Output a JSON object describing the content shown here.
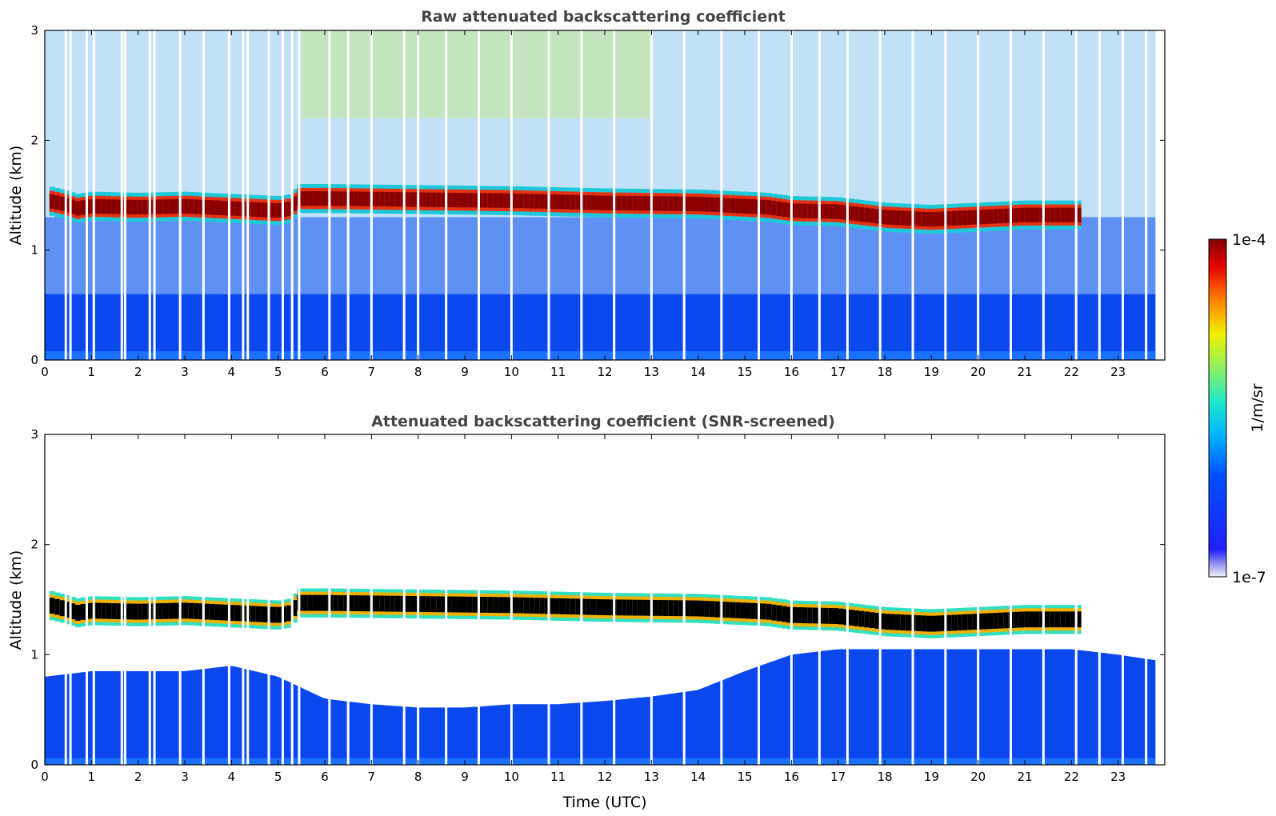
{
  "chart_data": [
    {
      "type": "heatmap",
      "title": "Raw attenuated backscattering coefficient",
      "xlabel": "",
      "ylabel": "Altitude (km)",
      "xlim": [
        0,
        24
      ],
      "ylim": [
        0,
        3
      ],
      "x_ticks": [
        "0",
        "1",
        "2",
        "3",
        "4",
        "5",
        "6",
        "7",
        "8",
        "9",
        "10",
        "11",
        "12",
        "13",
        "14",
        "15",
        "16",
        "17",
        "18",
        "19",
        "20",
        "21",
        "22",
        "23"
      ],
      "y_ticks": [
        "0",
        "1",
        "2",
        "3"
      ],
      "features": {
        "cloud_layer": {
          "description": "high-backscatter layer",
          "points": [
            [
              0.1,
              1.45
            ],
            [
              0.4,
              1.42
            ],
            [
              0.7,
              1.38
            ],
            [
              1.0,
              1.4
            ],
            [
              2.0,
              1.39
            ],
            [
              3.0,
              1.4
            ],
            [
              4.0,
              1.38
            ],
            [
              5.0,
              1.36
            ],
            [
              5.3,
              1.38
            ],
            [
              5.4,
              1.47
            ],
            [
              6,
              1.47
            ],
            [
              8,
              1.46
            ],
            [
              10,
              1.45
            ],
            [
              12,
              1.43
            ],
            [
              14,
              1.42
            ],
            [
              15.5,
              1.39
            ],
            [
              16,
              1.36
            ],
            [
              17,
              1.35
            ],
            [
              18,
              1.3
            ],
            [
              19,
              1.28
            ],
            [
              20,
              1.3
            ],
            [
              21,
              1.32
            ],
            [
              22.2,
              1.32
            ]
          ],
          "end_hour": 22.2,
          "thickness_km": 0.12
        },
        "missing_profiles_hours": [
          0.45,
          0.55,
          0.9,
          1.05,
          1.65,
          1.72,
          2.25,
          2.35,
          2.9,
          3.4,
          3.95,
          4.25,
          4.35,
          4.8,
          5.1,
          5.3,
          5.45,
          6.1,
          6.5,
          7.0,
          7.7,
          8.0,
          8.6,
          9.3,
          10.0,
          10.8,
          11.5,
          12.2,
          13.0,
          13.7,
          14.5,
          15.3,
          16.0,
          16.6,
          17.2,
          17.9,
          18.6,
          19.3,
          20.0,
          20.7,
          21.4,
          22.1,
          22.6,
          23.1,
          23.6
        ]
      }
    },
    {
      "type": "heatmap",
      "title": "Attenuated backscattering coefficient (SNR-screened)",
      "xlabel": "Time (UTC)",
      "ylabel": "Altitude (km)",
      "xlim": [
        0,
        24
      ],
      "ylim": [
        0,
        3
      ],
      "x_ticks": [
        "0",
        "1",
        "2",
        "3",
        "4",
        "5",
        "6",
        "7",
        "8",
        "9",
        "10",
        "11",
        "12",
        "13",
        "14",
        "15",
        "16",
        "17",
        "18",
        "19",
        "20",
        "21",
        "22",
        "23"
      ],
      "y_ticks": [
        "0",
        "1",
        "2",
        "3"
      ],
      "features": {
        "boundary_layer_top": {
          "description": "top of retained low-level signal (km)",
          "points": [
            [
              0,
              0.8
            ],
            [
              1,
              0.85
            ],
            [
              2,
              0.85
            ],
            [
              3,
              0.85
            ],
            [
              4,
              0.9
            ],
            [
              5,
              0.8
            ],
            [
              6,
              0.6
            ],
            [
              7,
              0.55
            ],
            [
              8,
              0.52
            ],
            [
              9,
              0.52
            ],
            [
              10,
              0.55
            ],
            [
              11,
              0.55
            ],
            [
              12,
              0.58
            ],
            [
              13,
              0.62
            ],
            [
              14,
              0.68
            ],
            [
              15,
              0.85
            ],
            [
              16,
              1.0
            ],
            [
              17,
              1.05
            ],
            [
              18,
              1.05
            ],
            [
              19,
              1.05
            ],
            [
              20,
              1.05
            ],
            [
              21,
              1.05
            ],
            [
              22,
              1.05
            ],
            [
              23,
              1.0
            ],
            [
              23.8,
              0.95
            ]
          ]
        }
      }
    }
  ],
  "colorbar": {
    "label": "1/m/sr",
    "max_label": "1e-4",
    "min_label": "1e-7",
    "colormap": "jet"
  },
  "colors": {
    "background": "#ffffff",
    "title": "#444444",
    "axis": "#000000"
  }
}
